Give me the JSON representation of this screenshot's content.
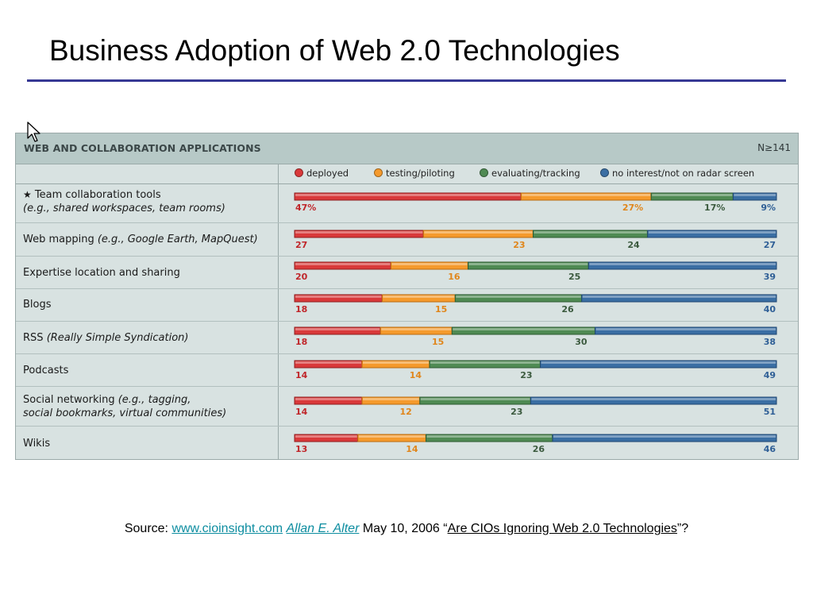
{
  "slide": {
    "title": "Business Adoption of Web 2.0 Technologies",
    "source": {
      "prefix": "Source: ",
      "site": "www.cioinsight.com",
      "author": "Allan E. Alter",
      "date": " May 10, 2006 “",
      "article": "Are CIOs Ignoring Web 2.0 Technologies",
      "suffix": "”?"
    }
  },
  "panel": {
    "title": "WEB AND COLLABORATION APPLICATIONS",
    "n_label": "N≥141"
  },
  "colors": {
    "deployed": "#d9393a",
    "testing": "#f59a2c",
    "evaluating": "#4f8a53",
    "no_interest": "#3a6ea3"
  },
  "chart_data": {
    "type": "bar",
    "orientation": "horizontal",
    "stacked": true,
    "unit": "%",
    "categories": [
      {
        "name": "Team collaboration tools",
        "detail": "(e.g., shared workspaces, team rooms)",
        "starred": true
      },
      {
        "name": "Web mapping",
        "detail": "(e.g., Google Earth, MapQuest)"
      },
      {
        "name": "Expertise location and sharing",
        "detail": ""
      },
      {
        "name": "Blogs",
        "detail": ""
      },
      {
        "name": "RSS",
        "detail": "(Really Simple Syndication)"
      },
      {
        "name": "Podcasts",
        "detail": ""
      },
      {
        "name": "Social networking",
        "detail": "(e.g., tagging,",
        "detail2": "social bookmarks, virtual communities)"
      },
      {
        "name": "Wikis",
        "detail": ""
      }
    ],
    "series": [
      {
        "name": "deployed",
        "values": [
          47,
          27,
          20,
          18,
          18,
          14,
          14,
          13
        ]
      },
      {
        "name": "testing/piloting",
        "values": [
          27,
          23,
          16,
          15,
          15,
          14,
          12,
          14
        ]
      },
      {
        "name": "evaluating/tracking",
        "values": [
          17,
          24,
          25,
          26,
          30,
          23,
          23,
          26
        ]
      },
      {
        "name": "no interest/not on radar screen",
        "values": [
          9,
          27,
          39,
          40,
          38,
          49,
          51,
          46
        ]
      }
    ],
    "first_row_labels": [
      "47%",
      "27%",
      "17%",
      "9%"
    ]
  }
}
